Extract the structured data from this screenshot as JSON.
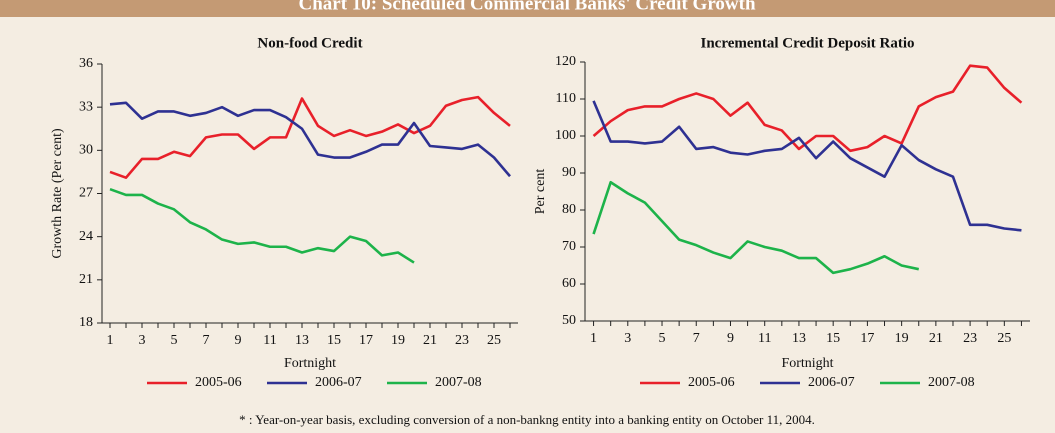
{
  "title": "Chart 10: Scheduled Commercial Banks' Credit Growth",
  "footnote": "* : Year-on-year basis, excluding conversion of a non-bankng entity into a banking entity on October 11, 2004.",
  "chart_data": [
    {
      "type": "line",
      "title": "Non-food Credit",
      "x_label": "Fortnight",
      "y_label": "Growth Rate (Per cent)",
      "x": [
        1,
        2,
        3,
        4,
        5,
        6,
        7,
        8,
        9,
        10,
        11,
        12,
        13,
        14,
        15,
        16,
        17,
        18,
        19,
        20,
        21,
        22,
        23,
        24,
        25,
        26
      ],
      "xlim": [
        0.5,
        26.5
      ],
      "xticks": [
        1,
        3,
        5,
        7,
        9,
        11,
        13,
        15,
        17,
        19,
        21,
        23,
        25
      ],
      "ylim": [
        18,
        36
      ],
      "yticks": [
        18,
        21,
        24,
        27,
        30,
        33,
        36
      ],
      "series": [
        {
          "name": "2005-06",
          "color": "#e8202a",
          "values": [
            28.5,
            28.1,
            29.4,
            29.4,
            29.9,
            29.6,
            30.9,
            31.1,
            31.1,
            30.1,
            30.9,
            30.9,
            33.6,
            31.7,
            31.0,
            31.4,
            31.0,
            31.3,
            31.8,
            31.2,
            31.7,
            33.1,
            33.5,
            33.7,
            32.6,
            31.7
          ]
        },
        {
          "name": "2006-07",
          "color": "#2e3192",
          "values": [
            33.2,
            33.3,
            32.2,
            32.7,
            32.7,
            32.4,
            32.6,
            33.0,
            32.4,
            32.8,
            32.8,
            32.3,
            31.5,
            29.7,
            29.5,
            29.5,
            29.9,
            30.4,
            30.4,
            31.9,
            30.3,
            30.2,
            30.1,
            30.4,
            29.5,
            28.2
          ]
        },
        {
          "name": "2007-08",
          "color": "#1db34a",
          "values": [
            27.3,
            26.9,
            26.9,
            26.3,
            25.9,
            25.0,
            24.5,
            23.8,
            23.5,
            23.6,
            23.3,
            23.3,
            22.9,
            23.2,
            23.0,
            24.0,
            23.7,
            22.7,
            22.9,
            22.2,
            null,
            null,
            null,
            null,
            null,
            null
          ]
        }
      ]
    },
    {
      "type": "line",
      "title": "Incremental Credit Deposit Ratio",
      "x_label": "Fortnight",
      "y_label": "Per cent",
      "x": [
        1,
        2,
        3,
        4,
        5,
        6,
        7,
        8,
        9,
        10,
        11,
        12,
        13,
        14,
        15,
        16,
        17,
        18,
        19,
        20,
        21,
        22,
        23,
        24,
        25,
        26
      ],
      "xlim": [
        0.5,
        26.5
      ],
      "xticks": [
        1,
        3,
        5,
        7,
        9,
        11,
        13,
        15,
        17,
        19,
        21,
        23,
        25
      ],
      "ylim": [
        50,
        120
      ],
      "yticks": [
        50,
        60,
        70,
        80,
        90,
        100,
        110,
        120
      ],
      "series": [
        {
          "name": "2005-06",
          "color": "#e8202a",
          "values": [
            100,
            104,
            107,
            108,
            108,
            110,
            111.5,
            110,
            105.5,
            109,
            103,
            101.5,
            96.5,
            100,
            100,
            96,
            97,
            100,
            98,
            108,
            110.5,
            112,
            119,
            118.5,
            113,
            109
          ]
        },
        {
          "name": "2006-07",
          "color": "#2e3192",
          "values": [
            109.5,
            98.5,
            98.5,
            98,
            98.5,
            102.5,
            96.5,
            97,
            95.5,
            95,
            96,
            96.5,
            99.5,
            94,
            98.5,
            94,
            91.5,
            89,
            97.5,
            93.5,
            91,
            89,
            76,
            76,
            75,
            74.5
          ]
        },
        {
          "name": "2007-08",
          "color": "#1db34a",
          "values": [
            73.5,
            87.5,
            84.5,
            82,
            77,
            72,
            70.5,
            68.5,
            67,
            71.5,
            70,
            69,
            67,
            67,
            63,
            64,
            65.5,
            67.5,
            65,
            64,
            null,
            null,
            null,
            null,
            null,
            null
          ]
        }
      ]
    }
  ]
}
